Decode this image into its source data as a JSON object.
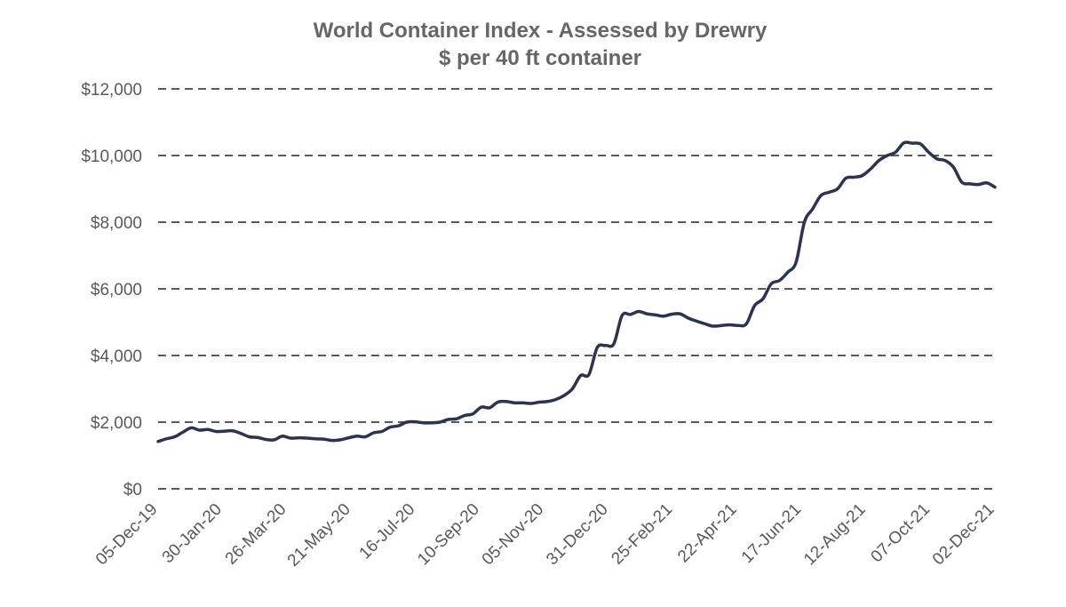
{
  "chart_data": {
    "type": "line",
    "title": "World Container Index - Assessed by Drewry",
    "subtitle": "$ per 40 ft container",
    "xlabel": "",
    "ylabel": "",
    "ylim": [
      0,
      12000
    ],
    "yticks": [
      0,
      2000,
      4000,
      6000,
      8000,
      10000,
      12000
    ],
    "ytick_labels": [
      "$0",
      "$2,000",
      "$4,000",
      "$6,000",
      "$8,000",
      "$10,000",
      "$12,000"
    ],
    "xtick_labels": [
      "05-Dec-19",
      "30-Jan-20",
      "26-Mar-20",
      "21-May-20",
      "16-Jul-20",
      "10-Sep-20",
      "05-Nov-20",
      "31-Dec-20",
      "25-Feb-21",
      "22-Apr-21",
      "17-Jun-21",
      "12-Aug-21",
      "07-Oct-21",
      "02-Dec-21"
    ],
    "grid": true,
    "series": [
      {
        "name": "World Container Index",
        "color": "#2b3350",
        "values": [
          1420,
          1500,
          1560,
          1700,
          1830,
          1760,
          1780,
          1720,
          1730,
          1740,
          1660,
          1560,
          1540,
          1480,
          1470,
          1580,
          1520,
          1530,
          1520,
          1500,
          1490,
          1450,
          1470,
          1530,
          1580,
          1560,
          1680,
          1720,
          1850,
          1890,
          2000,
          2010,
          1980,
          1980,
          2000,
          2080,
          2100,
          2200,
          2250,
          2450,
          2430,
          2600,
          2620,
          2580,
          2580,
          2560,
          2600,
          2620,
          2680,
          2800,
          3000,
          3400,
          3430,
          4240,
          4300,
          4350,
          5200,
          5230,
          5320,
          5250,
          5220,
          5180,
          5240,
          5250,
          5120,
          5030,
          4950,
          4880,
          4900,
          4920,
          4900,
          4950,
          5500,
          5700,
          6150,
          6250,
          6500,
          6800,
          8000,
          8400,
          8800,
          8900,
          9000,
          9320,
          9350,
          9400,
          9600,
          9850,
          10000,
          10100,
          10380,
          10370,
          10350,
          10100,
          9900,
          9850,
          9650,
          9200,
          9150,
          9130,
          9180,
          9050
        ]
      }
    ]
  }
}
